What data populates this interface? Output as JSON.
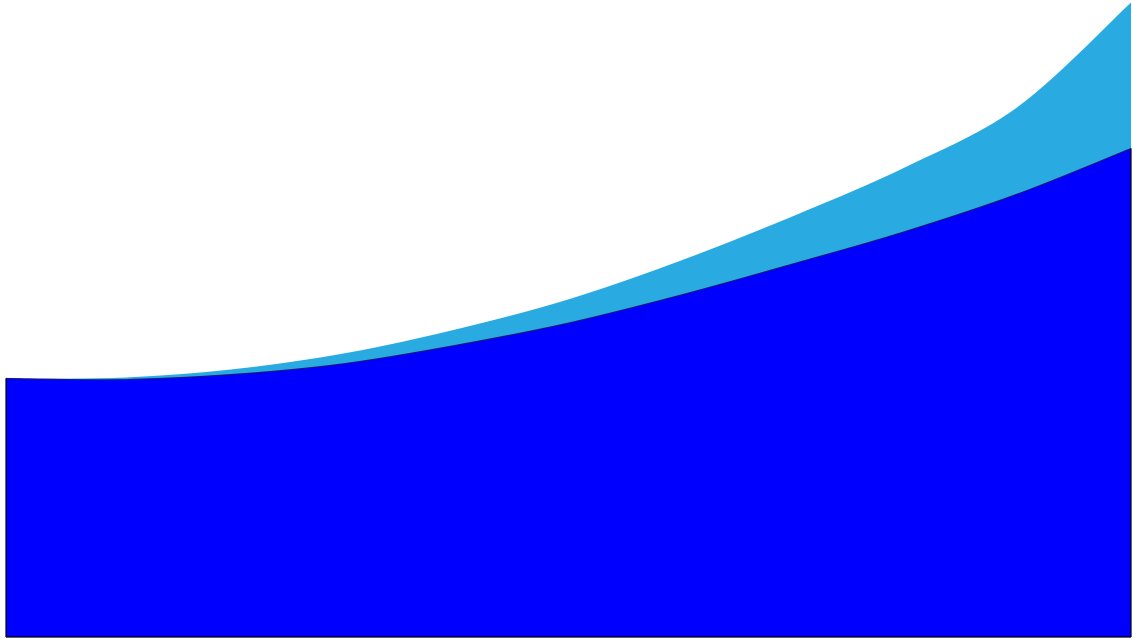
{
  "chart_data": {
    "type": "area",
    "stacked": true,
    "title": "",
    "xlabel": "",
    "ylabel": "",
    "grid": false,
    "legend": "none",
    "x": [
      0,
      1,
      2,
      3,
      4,
      5,
      6,
      7,
      8,
      9,
      10
    ],
    "xlim": [
      0,
      10
    ],
    "ylim": [
      0,
      100
    ],
    "series": [
      {
        "color": "#0000ff",
        "values": [
          40.6,
          40.4,
          41.2,
          42.9,
          45.8,
          49.3,
          53.7,
          58.6,
          63.7,
          69.6,
          76.7
        ]
      },
      {
        "color": "#29abe2",
        "values": [
          0.0,
          0.3,
          0.8,
          1.6,
          2.5,
          3.7,
          5.4,
          7.5,
          10.1,
          13.7,
          22.9
        ]
      }
    ]
  }
}
